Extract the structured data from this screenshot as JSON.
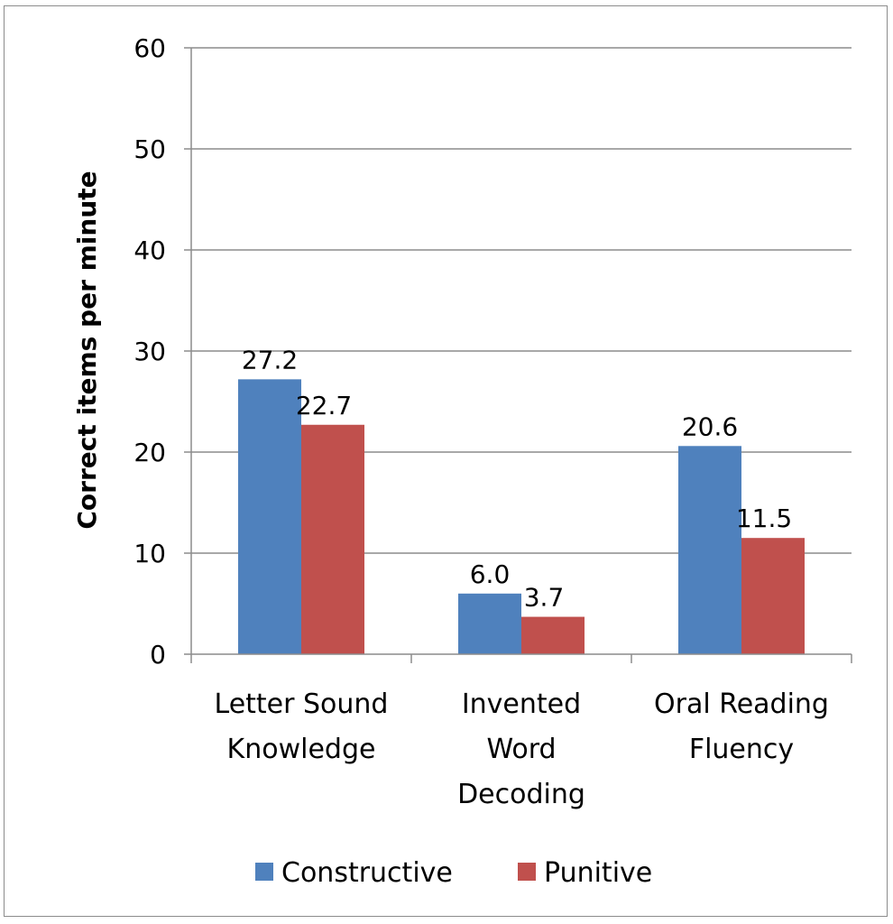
{
  "chart_data": {
    "type": "bar",
    "categories": [
      [
        "Letter Sound",
        "Knowledge"
      ],
      [
        "Invented",
        "Word",
        "Decoding"
      ],
      [
        "Oral Reading",
        "Fluency"
      ]
    ],
    "series": [
      {
        "name": "Constructive",
        "values": [
          27.2,
          6.0,
          20.6
        ],
        "labels": [
          "27.2",
          "6.0",
          "20.6"
        ],
        "color": "#4f81bd"
      },
      {
        "name": "Punitive",
        "values": [
          22.7,
          3.7,
          11.5
        ],
        "labels": [
          "22.7",
          "3.7",
          "11.5"
        ],
        "color": "#c0504d"
      }
    ],
    "title": "",
    "xlabel": "",
    "ylabel": "Correct items per minute",
    "ylim": [
      0,
      60
    ],
    "yticks": [
      0,
      10,
      20,
      30,
      40,
      50,
      60
    ],
    "grid": true,
    "legend": "bottom"
  }
}
